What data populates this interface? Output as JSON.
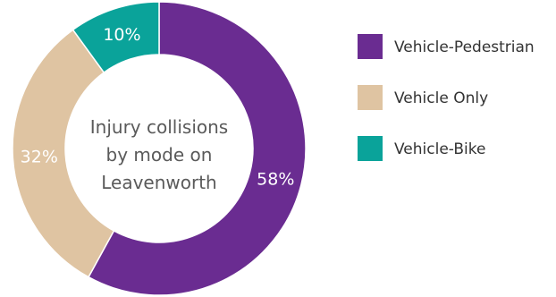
{
  "chart_data": {
    "type": "pie",
    "title": "Injury collisions by mode on Leavenworth",
    "title_lines": [
      "Injury collisions",
      "by mode on",
      "Leavenworth"
    ],
    "categories": [
      "Vehicle-Pedestrian",
      "Vehicle Only",
      "Vehicle-Bike"
    ],
    "values": [
      58,
      32,
      10
    ],
    "value_labels": [
      "58%",
      "32%",
      "10%"
    ],
    "colors": [
      "#6a2c91",
      "#dfc4a2",
      "#0aa39a"
    ],
    "donut": true,
    "legend_position": "right"
  }
}
